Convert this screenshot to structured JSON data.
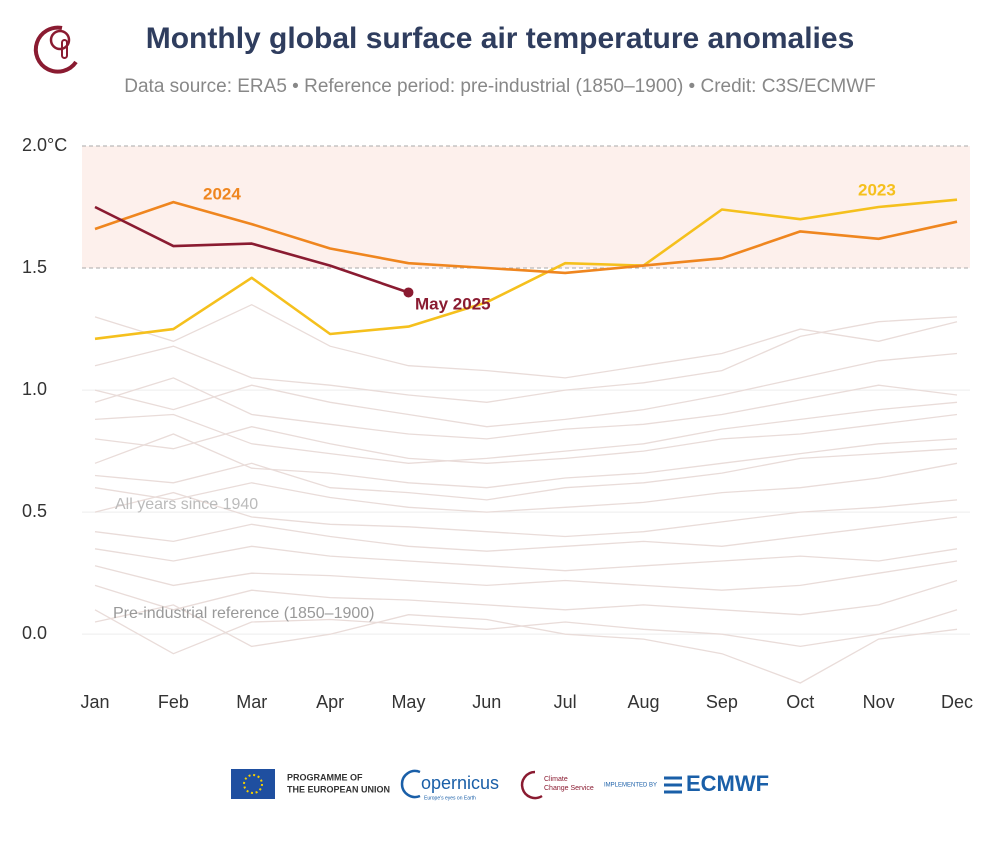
{
  "chart_data": {
    "type": "line",
    "title": "Monthly global surface air temperature anomalies",
    "subtitle": "Data source: ERA5 • Reference period: pre-industrial (1850–1900) • Credit: C3S/ECMWF",
    "categories": [
      "Jan",
      "Feb",
      "Mar",
      "Apr",
      "May",
      "Jun",
      "Jul",
      "Aug",
      "Sep",
      "Oct",
      "Nov",
      "Dec"
    ],
    "ylim": [
      -0.2,
      2.0
    ],
    "yticks": [
      {
        "value": 0,
        "label": "0.0"
      },
      0.5,
      {
        "value": 1,
        "label": "1.0"
      },
      1.5,
      {
        "value": 2,
        "label": "2.0°C"
      }
    ],
    "highlight_band": [
      1.5,
      2.0
    ],
    "grid": true,
    "series": [
      {
        "name": "2023",
        "color": "#f5c01d",
        "values": [
          1.21,
          1.25,
          1.46,
          1.23,
          1.26,
          1.36,
          1.52,
          1.51,
          1.74,
          1.7,
          1.75,
          1.78
        ]
      },
      {
        "name": "2024",
        "color": "#ef861f",
        "values": [
          1.66,
          1.77,
          1.68,
          1.58,
          1.52,
          1.5,
          1.48,
          1.51,
          1.54,
          1.65,
          1.62,
          1.69
        ]
      },
      {
        "name": "May 2025",
        "color": "#8a1b31",
        "values": [
          1.75,
          1.59,
          1.6,
          1.51,
          1.4,
          null,
          null,
          null,
          null,
          null,
          null,
          null
        ]
      }
    ],
    "background_color": "#e9dcd9",
    "background_series": [
      [
        1.3,
        1.2,
        1.35,
        1.18,
        1.1,
        1.08,
        1.05,
        1.1,
        1.15,
        1.25,
        1.2,
        1.28
      ],
      [
        1.1,
        1.18,
        1.05,
        1.02,
        0.98,
        0.95,
        1.0,
        1.03,
        1.08,
        1.22,
        1.28,
        1.3
      ],
      [
        1.0,
        0.92,
        1.02,
        0.95,
        0.9,
        0.85,
        0.88,
        0.92,
        0.98,
        1.05,
        1.12,
        1.15
      ],
      [
        0.95,
        1.05,
        0.9,
        0.86,
        0.82,
        0.8,
        0.84,
        0.86,
        0.9,
        0.96,
        1.02,
        0.98
      ],
      [
        0.8,
        0.76,
        0.85,
        0.78,
        0.72,
        0.7,
        0.72,
        0.75,
        0.8,
        0.82,
        0.86,
        0.9
      ],
      [
        0.7,
        0.82,
        0.68,
        0.66,
        0.62,
        0.6,
        0.64,
        0.66,
        0.7,
        0.74,
        0.78,
        0.8
      ],
      [
        0.6,
        0.55,
        0.62,
        0.56,
        0.52,
        0.5,
        0.52,
        0.54,
        0.58,
        0.6,
        0.64,
        0.7
      ],
      [
        0.5,
        0.58,
        0.48,
        0.45,
        0.44,
        0.42,
        0.4,
        0.42,
        0.46,
        0.5,
        0.52,
        0.55
      ],
      [
        0.42,
        0.38,
        0.45,
        0.4,
        0.36,
        0.34,
        0.36,
        0.38,
        0.36,
        0.4,
        0.44,
        0.48
      ],
      [
        0.35,
        0.3,
        0.36,
        0.32,
        0.3,
        0.28,
        0.26,
        0.28,
        0.3,
        0.32,
        0.3,
        0.35
      ],
      [
        0.28,
        0.2,
        0.25,
        0.24,
        0.22,
        0.2,
        0.22,
        0.2,
        0.18,
        0.2,
        0.25,
        0.3
      ],
      [
        0.2,
        0.1,
        0.18,
        0.15,
        0.14,
        0.12,
        0.1,
        0.12,
        0.1,
        0.08,
        0.12,
        0.22
      ],
      [
        0.1,
        -0.08,
        0.05,
        0.06,
        0.04,
        0.02,
        0.05,
        0.02,
        0.0,
        -0.05,
        0.0,
        0.1
      ],
      [
        0.05,
        0.12,
        -0.05,
        0.0,
        0.08,
        0.06,
        0.0,
        -0.02,
        -0.08,
        -0.2,
        -0.02,
        0.02
      ],
      [
        0.65,
        0.62,
        0.7,
        0.6,
        0.58,
        0.55,
        0.6,
        0.62,
        0.66,
        0.72,
        0.74,
        0.76
      ],
      [
        0.88,
        0.9,
        0.78,
        0.74,
        0.7,
        0.72,
        0.75,
        0.78,
        0.84,
        0.88,
        0.92,
        0.95
      ]
    ],
    "annotations": [
      "All years since 1940",
      "Pre-industrial reference (1850–1900)"
    ]
  },
  "footer": {
    "eu": "PROGRAMME OF",
    "eu2": "THE EUROPEAN UNION",
    "copernicus": "opernicus",
    "copernicus_sub": "Europe's eyes on Earth",
    "c3s": "Climate",
    "c3s2": "Change Service",
    "implemented": "IMPLEMENTED BY",
    "ecmwf": "ECMWF"
  }
}
